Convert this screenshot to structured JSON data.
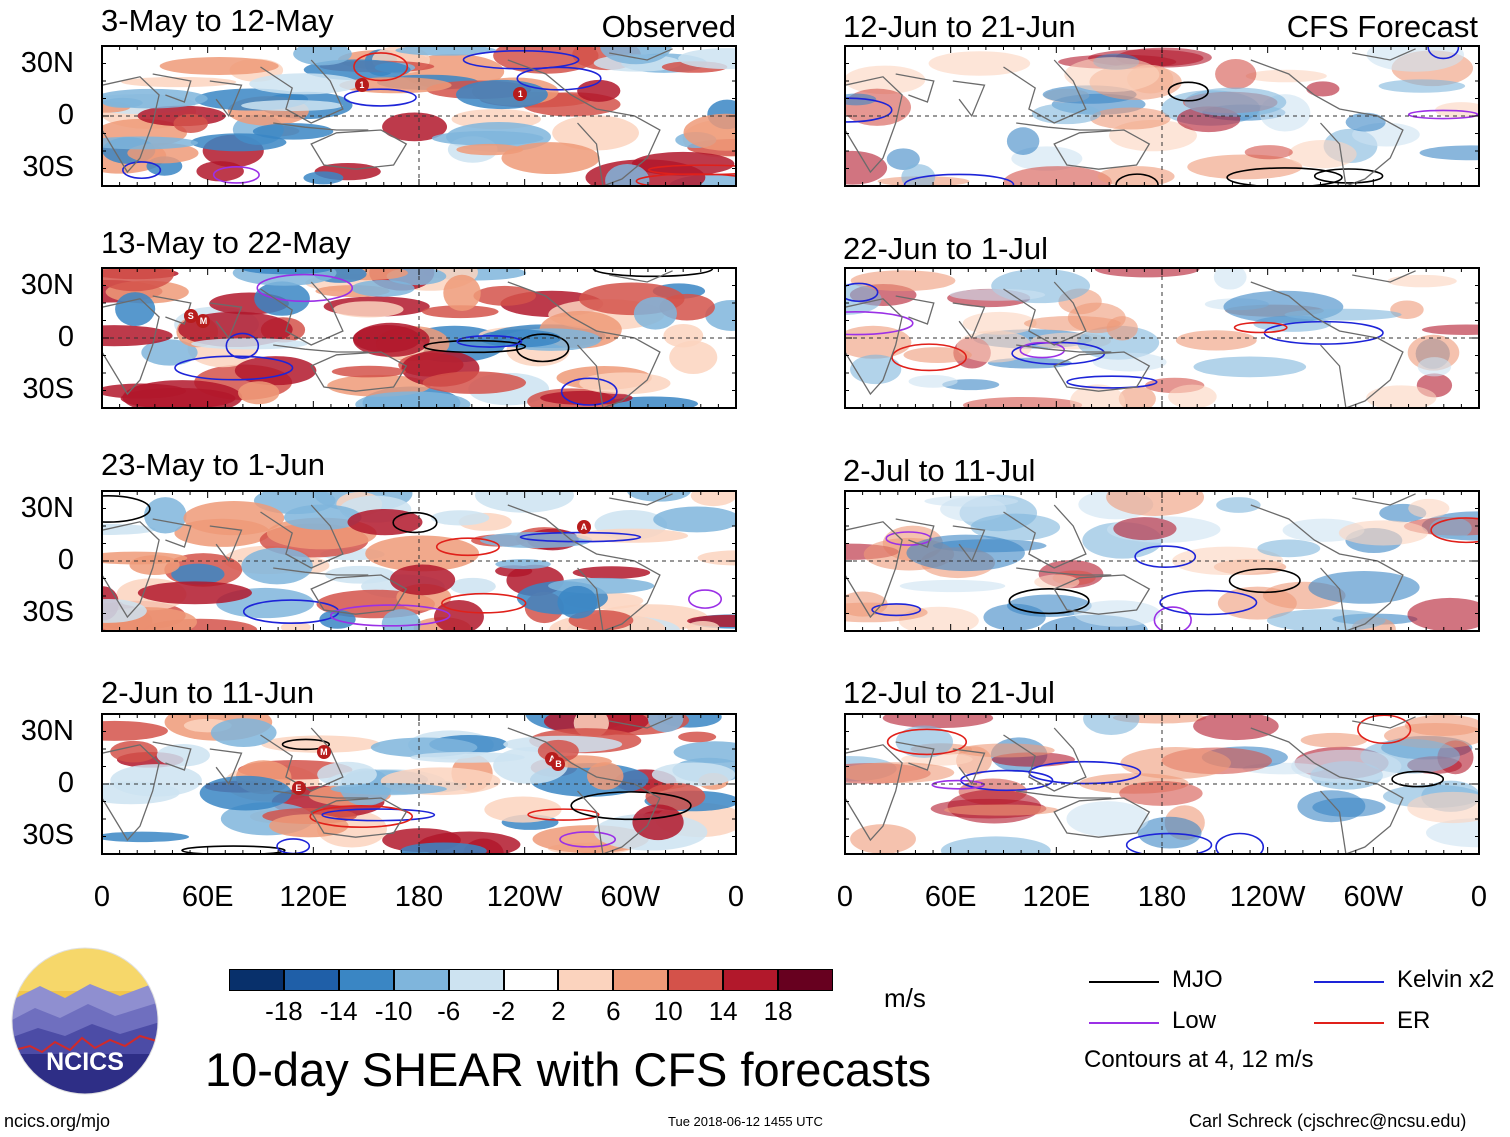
{
  "panels": {
    "obs": [
      {
        "title": "3-May to 12-May",
        "label": "Observed"
      },
      {
        "title": "13-May to 22-May"
      },
      {
        "title": "23-May to 1-Jun"
      },
      {
        "title": "2-Jun to 11-Jun"
      }
    ],
    "fcst": [
      {
        "title": "12-Jun to 21-Jun",
        "label": "CFS Forecast"
      },
      {
        "title": "22-Jun to 1-Jul"
      },
      {
        "title": "2-Jul to 11-Jul"
      },
      {
        "title": "12-Jul to 21-Jul"
      }
    ]
  },
  "axes": {
    "lat_labels": [
      "30N",
      "0",
      "30S"
    ],
    "lon_labels": [
      "0",
      "60E",
      "120E",
      "180",
      "120W",
      "60W",
      "0"
    ]
  },
  "colorbar": {
    "unit": "m/s",
    "ticks": [
      "-18",
      "-14",
      "-10",
      "-6",
      "-2",
      "2",
      "6",
      "10",
      "14",
      "18"
    ],
    "colors": [
      "#08306b",
      "#1f5fa8",
      "#3a86c4",
      "#7fb5dc",
      "#cde3f1",
      "#ffffff",
      "#fbd3be",
      "#ef9a78",
      "#d4524a",
      "#b2182b",
      "#67001f"
    ]
  },
  "legend": {
    "items": [
      {
        "label": "MJO",
        "color": "#000000"
      },
      {
        "label": "Kelvin x2",
        "color": "#1d24d8"
      },
      {
        "label": "Low",
        "color": "#9b30e6"
      },
      {
        "label": "ER",
        "color": "#e0201a"
      }
    ],
    "note": "Contours at 4, 12 m/s"
  },
  "title": "10-day SHEAR with CFS forecasts",
  "logo": {
    "text": "NCICS"
  },
  "footer": {
    "url": "ncics.org/mjo",
    "timestamp": "Tue 2018-06-12 1455 UTC",
    "credit": "Carl Schreck (cjschrec@ncsu.edu)"
  },
  "storm_markers": [
    {
      "text": "1"
    },
    {
      "text": "1"
    },
    {
      "text": "S"
    },
    {
      "text": "M"
    },
    {
      "text": "A"
    },
    {
      "text": "E"
    },
    {
      "text": "M"
    },
    {
      "text": "A"
    },
    {
      "text": "B"
    }
  ]
}
